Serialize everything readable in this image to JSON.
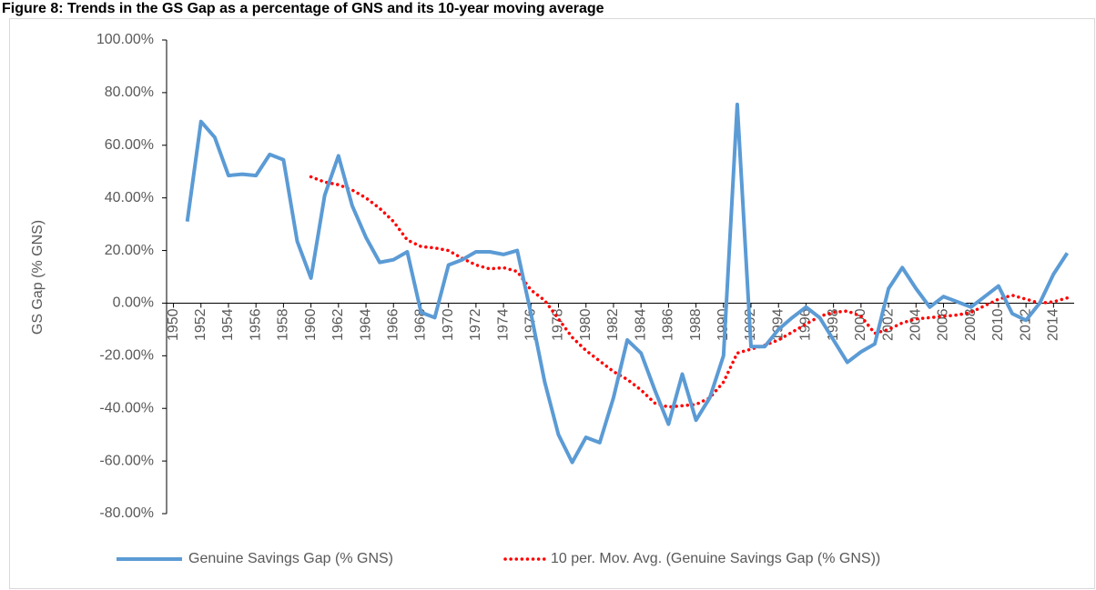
{
  "chart_data": {
    "type": "line",
    "title": "Figure 8: Trends in the GS Gap as a percentage of GNS and its 10-year moving average",
    "y_label": "GS Gap (% GNS)",
    "x": [
      1951,
      1952,
      1953,
      1954,
      1955,
      1956,
      1957,
      1958,
      1959,
      1960,
      1961,
      1962,
      1963,
      1964,
      1965,
      1966,
      1967,
      1968,
      1969,
      1970,
      1971,
      1972,
      1973,
      1974,
      1975,
      1976,
      1977,
      1978,
      1979,
      1980,
      1981,
      1982,
      1983,
      1984,
      1985,
      1986,
      1987,
      1988,
      1989,
      1990,
      1991,
      1992,
      1993,
      1994,
      1995,
      1996,
      1997,
      1998,
      1999,
      2000,
      2001,
      2002,
      2003,
      2004,
      2005,
      2006,
      2007,
      2008,
      2009,
      2010,
      2011,
      2012,
      2013,
      2014,
      2015
    ],
    "series": [
      {
        "name": "Genuine Savings Gap (% GNS)",
        "color": "#5b9bd5",
        "style": "solid",
        "values": [
          31,
          69,
          63,
          48.5,
          49,
          48.5,
          56.5,
          54.5,
          23.5,
          9.5,
          41,
          56,
          37,
          25,
          15.5,
          16.5,
          19.5,
          -3.5,
          -5.5,
          14.5,
          16.5,
          19.5,
          19.5,
          18.5,
          20,
          -4,
          -30,
          -50,
          -60.5,
          -51,
          -53,
          -36,
          -14,
          -19,
          -33,
          -46,
          -27,
          -44.5,
          -36,
          -20,
          75.5,
          -16.5,
          -16.5,
          -10,
          -5.5,
          -1.5,
          -5.5,
          -14,
          -22.5,
          -18.5,
          -15.5,
          5.5,
          13.5,
          5.5,
          -1.5,
          2.5,
          0.5,
          -1.5,
          2.5,
          6.5,
          -4,
          -6.5,
          0,
          11,
          19
        ]
      },
      {
        "name": "10 per. Mov. Avg. (Genuine Savings Gap (% GNS))",
        "color": "#ff0000",
        "style": "dotted",
        "values": [
          null,
          null,
          null,
          null,
          null,
          null,
          null,
          null,
          null,
          48,
          46,
          45,
          43,
          40,
          36,
          31,
          24,
          21.5,
          21,
          20,
          17,
          14.5,
          13,
          13.5,
          12,
          5,
          1,
          -6,
          -13,
          -18,
          -22,
          -26,
          -29,
          -33,
          -38,
          -39.5,
          -39,
          -38.5,
          -36,
          -30,
          -19,
          -17.5,
          -16,
          -14,
          -11,
          -8,
          -5,
          -3.5,
          -3,
          -5,
          -11.5,
          -10,
          -7.5,
          -6,
          -5.5,
          -5,
          -4.5,
          -3.5,
          -1,
          1.5,
          3,
          1.5,
          0,
          0.5,
          2
        ]
      }
    ],
    "xlim": [
      1949.5,
      2015.5
    ],
    "xticks": [
      1950,
      1952,
      1954,
      1956,
      1958,
      1960,
      1962,
      1964,
      1966,
      1968,
      1970,
      1972,
      1974,
      1976,
      1978,
      1980,
      1982,
      1984,
      1986,
      1988,
      1990,
      1992,
      1994,
      1996,
      1998,
      2000,
      2002,
      2004,
      2006,
      2008,
      2010,
      2012,
      2014
    ],
    "ylim": [
      -80,
      100
    ],
    "yticks": [
      {
        "value": -80,
        "label": "-80.00%"
      },
      {
        "value": -60,
        "label": "-60.00%"
      },
      {
        "value": -40,
        "label": "-40.00%"
      },
      {
        "value": -20,
        "label": "-20.00%"
      },
      {
        "value": 0,
        "label": "0.00%"
      },
      {
        "value": 20,
        "label": "20.00%"
      },
      {
        "value": 40,
        "label": "40.00%"
      },
      {
        "value": 60,
        "label": "60.00%"
      },
      {
        "value": 80,
        "label": "80.00%"
      },
      {
        "value": 100,
        "label": "100.00%"
      }
    ],
    "grid": false
  }
}
